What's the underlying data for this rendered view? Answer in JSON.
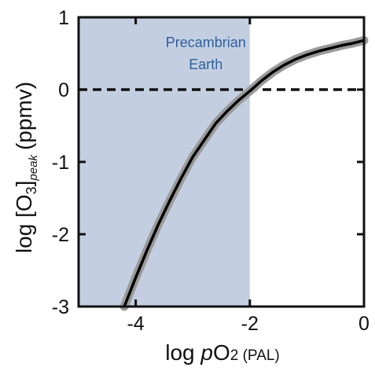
{
  "chart_data": {
    "type": "line",
    "title": "",
    "xlabel": {
      "prefix": "log ",
      "italic": "p",
      "main": "O",
      "sub": "2",
      "unit": " (PAL)"
    },
    "ylabel": {
      "prefix": "log [O",
      "sub_num": "3",
      "sub_italic": "peak",
      "suffix": "(ppmv)"
    },
    "xlim": [
      -5,
      0
    ],
    "ylim": [
      -3,
      1
    ],
    "x_ticks": [
      -4,
      -2,
      0
    ],
    "x_tick_labels": [
      "-4",
      "-2",
      "0"
    ],
    "y_ticks": [
      -3,
      -2,
      -1,
      0,
      1
    ],
    "y_tick_labels": [
      "-3",
      "-2",
      "-1",
      "0",
      "1"
    ],
    "grid": false,
    "legend": "none",
    "shaded_region": {
      "x": [
        -5,
        -2
      ],
      "color": "#c3cfe1",
      "label": [
        "Precambrian",
        "Earth"
      ],
      "label_color": "#2f5f9e"
    },
    "reference_line": {
      "y": 0,
      "style": "dashed",
      "color": "#111111"
    },
    "series": [
      {
        "line_color": "#000000",
        "band_color": "#9a9a9a",
        "x": [
          -4.2,
          -4.0,
          -3.8,
          -3.6,
          -3.4,
          -3.2,
          -3.0,
          -2.8,
          -2.6,
          -2.4,
          -2.2,
          -2.0,
          -1.9,
          -1.8,
          -1.6,
          -1.4,
          -1.2,
          -1.0,
          -0.8,
          -0.6,
          -0.4,
          -0.2,
          0.0
        ],
        "y": [
          -3.0,
          -2.6,
          -2.22,
          -1.86,
          -1.53,
          -1.22,
          -0.93,
          -0.7,
          -0.47,
          -0.3,
          -0.15,
          -0.02,
          0.05,
          0.12,
          0.24,
          0.34,
          0.42,
          0.48,
          0.53,
          0.57,
          0.61,
          0.64,
          0.68
        ]
      }
    ]
  }
}
